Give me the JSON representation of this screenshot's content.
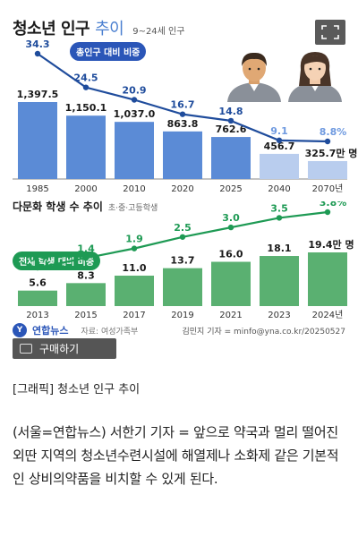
{
  "header": {
    "title_bold": "청소년 인구",
    "title_light": "추이",
    "subtitle": "9~24세 인구"
  },
  "chart1_pill": "총인구 대비 비중",
  "section2": {
    "title": "다문화 학생 수 추이",
    "subtitle": "초·중·고등학생"
  },
  "chart2_pill": "전체 학생 대비 비중",
  "chart_data": [
    {
      "type": "bar",
      "categories": [
        "1985",
        "2000",
        "2010",
        "2020",
        "2025",
        "2040",
        "2070년"
      ],
      "values": [
        1397.5,
        1150.1,
        1037.0,
        863.8,
        762.6,
        456.7,
        325.7
      ],
      "value_labels": [
        "1,397.5",
        "1,150.1",
        "1,037.0",
        "863.8",
        "762.6",
        "456.7",
        "325.7만 명"
      ],
      "line_values": [
        34.3,
        24.5,
        20.9,
        16.7,
        14.8,
        9.1,
        8.8
      ],
      "line_labels": [
        "34.3",
        "24.5",
        "20.9",
        "16.7",
        "14.8",
        "9.1",
        "8.8%"
      ],
      "projected_from_index": 5,
      "colors": {
        "bar": "#5b8bd6",
        "bar_projected": "#b9cdee",
        "line": "#1f4c9c",
        "line_projected_label": "#6f9ae0"
      }
    },
    {
      "type": "bar",
      "categories": [
        "2013",
        "2015",
        "2017",
        "2019",
        "2021",
        "2023",
        "2024년"
      ],
      "values": [
        5.6,
        8.3,
        11.0,
        13.7,
        16.0,
        18.1,
        19.4
      ],
      "value_labels": [
        "5.6",
        "8.3",
        "11.0",
        "13.7",
        "16.0",
        "18.1",
        "19.4만 명"
      ],
      "line_values": [
        0.9,
        1.4,
        1.9,
        2.5,
        3.0,
        3.5,
        3.8
      ],
      "line_labels": [
        "0.9",
        "1.4",
        "1.9",
        "2.5",
        "3.0",
        "3.5",
        "3.8%"
      ],
      "colors": {
        "bar": "#5ab071",
        "line": "#1e9a54"
      }
    }
  ],
  "footer": {
    "logo_glyph": "Y",
    "logo_text": "연합뉴스",
    "source": "자료: 여성가족부",
    "credit": "김민지 기자 = minfo@yna.co.kr/20250527"
  },
  "buy_button_label": "구매하기",
  "caption": "[그래픽] 청소년 인구 추이",
  "article_text": "(서울=연합뉴스) 서한기 기자 = 앞으로 약국과 멀리 떨어진 외딴 지역의 청소년수련시설에 해열제나 소화제 같은 기본적인 상비의약품을 비치할 수 있게 된다.",
  "icons": [
    "expand-icon",
    "person-male-icon",
    "person-female-icon",
    "cart-icon"
  ]
}
